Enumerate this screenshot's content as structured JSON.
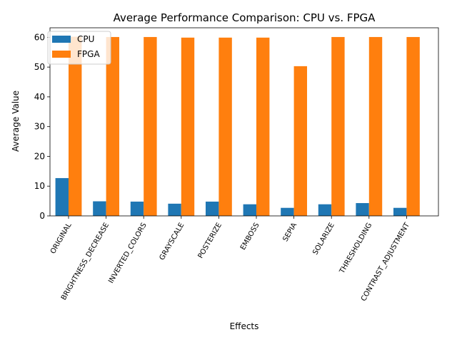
{
  "chart_data": {
    "type": "bar",
    "title": "Average Performance Comparison: CPU vs. FPGA",
    "xlabel": "Effects",
    "ylabel": "Average Value",
    "ylim": [
      0,
      63.2
    ],
    "yticks": [
      0,
      10,
      20,
      30,
      40,
      50,
      60
    ],
    "grid": false,
    "legend_position": "top-left",
    "categories": [
      "ORIGINAL",
      "BRIGHTNESS_DECREASE",
      "INVERTED_COLORS",
      "GRAYSCALE",
      "POSTERIZE",
      "EMBOSS",
      "SEPIA",
      "SOLARIZE",
      "THRESHOLDING",
      "CONTRAST_ADJUSTMENT"
    ],
    "series": [
      {
        "name": "CPU",
        "color": "#1f77b4",
        "values": [
          12.7,
          4.9,
          4.8,
          4.1,
          4.8,
          3.9,
          2.7,
          3.9,
          4.3,
          2.7
        ]
      },
      {
        "name": "FPGA",
        "color": "#ff7f0e",
        "values": [
          60.2,
          60.1,
          60.1,
          59.9,
          59.9,
          59.9,
          50.3,
          60.1,
          60.1,
          60.1
        ]
      }
    ]
  }
}
